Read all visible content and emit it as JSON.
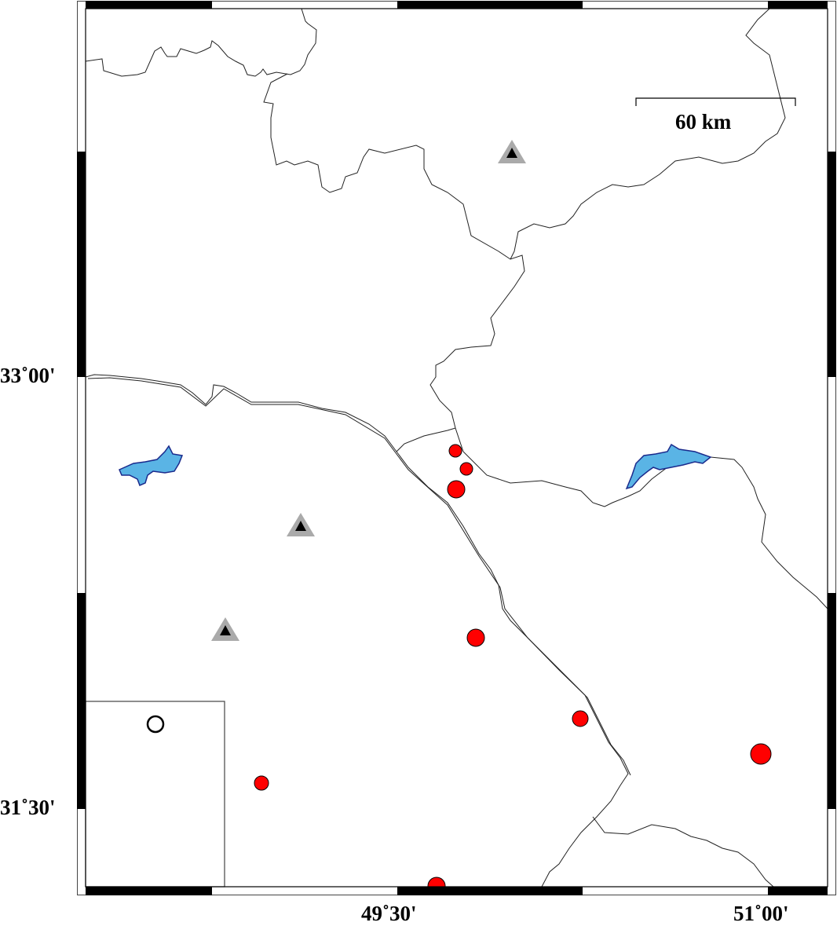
{
  "map": {
    "scale_bar_label": "60 km",
    "lat_labels": [
      "33˚00'",
      "31˚30'"
    ],
    "lon_labels": [
      "49˚30'",
      "51˚00'"
    ],
    "colors": {
      "event": "#ff0000",
      "station_outer": "#aaaaaa",
      "station_inner": "#000000",
      "lake": "#5ab4e5",
      "lake_outline": "#1a2a8c",
      "border": "#000000"
    },
    "symbols": {
      "event": "red-circle",
      "station": "triangle",
      "legend": "open-circle"
    }
  }
}
